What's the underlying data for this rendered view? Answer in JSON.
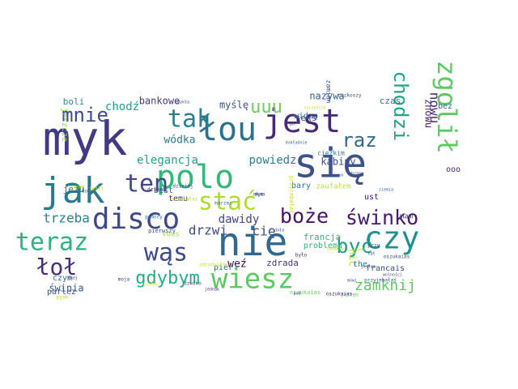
{
  "words": [
    {
      "text": "myk",
      "color": "#443983"
    },
    {
      "text": "się",
      "color": "#3b528b"
    },
    {
      "text": "nie",
      "color": "#31688e"
    },
    {
      "text": "jak",
      "color": "#2a788e"
    },
    {
      "text": "polo",
      "color": "#35b779"
    },
    {
      "text": "łou",
      "color": "#2c728e"
    },
    {
      "text": "jest",
      "color": "#482878"
    },
    {
      "text": "czy",
      "color": "#21918c"
    },
    {
      "text": "disco",
      "color": "#3e4989"
    },
    {
      "text": "wiesz",
      "color": "#5ec962"
    },
    {
      "text": "wąs",
      "color": "#3e4a89"
    },
    {
      "text": "teraz",
      "color": "#2db27d"
    },
    {
      "text": "łoł",
      "color": "#472d7b"
    },
    {
      "text": "tak",
      "color": "#27808e"
    },
    {
      "text": "ten",
      "color": "#3f4788"
    },
    {
      "text": "stać",
      "color": "#addc30"
    },
    {
      "text": "zgolił",
      "color": "#5ec962"
    },
    {
      "text": "boże",
      "color": "#471365"
    },
    {
      "text": "świnko",
      "color": "#481a6c"
    },
    {
      "text": "być",
      "color": "#1f9a8a"
    },
    {
      "text": "mnie",
      "color": "#3e4a89"
    },
    {
      "text": "raz",
      "color": "#31688e"
    },
    {
      "text": "chodzi",
      "color": "#20a486"
    },
    {
      "text": "uuu",
      "color": "#6ece58"
    },
    {
      "text": "gdybym",
      "color": "#27ad81"
    },
    {
      "text": "zamknij",
      "color": "#5ec962"
    },
    {
      "text": "nowu",
      "color": "#482878"
    },
    {
      "text": "trzeba",
      "color": "#277f8e"
    },
    {
      "text": "drzwi",
      "color": "#3e4a89"
    },
    {
      "text": "cię",
      "color": "#3b528b"
    },
    {
      "text": "dawidy",
      "color": "#404688"
    },
    {
      "text": "elegancja",
      "color": "#1fa187"
    },
    {
      "text": "powiedz",
      "color": "#287d8e"
    },
    {
      "text": "kabiny",
      "color": "#3d4e8a"
    },
    {
      "text": "chodź",
      "color": "#1f9e89"
    },
    {
      "text": "bankowe",
      "color": "#453781"
    },
    {
      "text": "wódka",
      "color": "#2a788e"
    },
    {
      "text": "myślę",
      "color": "#3b528b"
    },
    {
      "text": "seks",
      "color": "#443a83"
    },
    {
      "text": "nazywa",
      "color": "#35608d"
    },
    {
      "text": "czas",
      "color": "#2a788e"
    },
    {
      "text": "bez",
      "color": "#31688e"
    },
    {
      "text": "znowu",
      "color": "#481f70"
    },
    {
      "text": "ooo",
      "color": "#482475"
    },
    {
      "text": "boli",
      "color": "#21918c"
    },
    {
      "text": "jeszcze",
      "color": "#8fd744"
    },
    {
      "text": "jezu",
      "color": "#2f6c8e"
    },
    {
      "text": "best",
      "color": "#2e6e8e"
    },
    {
      "text": "temu",
      "color": "#472f7d"
    },
    {
      "text": "francja",
      "color": "#35b779"
    },
    {
      "text": "weź",
      "color": "#440154"
    },
    {
      "text": "czym",
      "color": "#2c728e"
    },
    {
      "text": "parlez",
      "color": "#3a538b"
    },
    {
      "text": "świnia",
      "color": "#39568c"
    },
    {
      "text": "vous",
      "color": "#a8db34"
    },
    {
      "text": "pier",
      "color": "#2d708e"
    },
    {
      "text": "problemu",
      "color": "#2eb37c"
    },
    {
      "text": "zdrada",
      "color": "#443983"
    },
    {
      "text": "nic",
      "color": "#bddf26"
    },
    {
      "text": "the",
      "color": "#26828e"
    },
    {
      "text": "francais",
      "color": "#3e4a89"
    },
    {
      "text": "mam",
      "color": "#433e85"
    },
    {
      "text": "ust",
      "color": "#482071"
    },
    {
      "text": "zaufałem",
      "color": "#b8de29"
    },
    {
      "text": "bary",
      "color": "#2c738e"
    },
    {
      "text": "widzę",
      "color": "#2a768e"
    },
    {
      "text": "zamian",
      "color": "#3b528b"
    },
    {
      "text": "ciężkim",
      "color": "#2a788e"
    },
    {
      "text": "oszukaias",
      "color": "#6ece58"
    },
    {
      "text": "przyjebałaś",
      "color": "#bddf26"
    },
    {
      "text": "pierwszy",
      "color": "#3b528b"
    },
    {
      "text": "dzwiko",
      "color": "#3e4a89"
    },
    {
      "text": "pysk",
      "color": "#bddf26"
    },
    {
      "text": "czymo",
      "color": "#fde725"
    },
    {
      "text": "jednak",
      "color": "#bddf26"
    },
    {
      "text": "jeśli",
      "color": "#c8e020"
    },
    {
      "text": "pomocy",
      "color": "#2a788e"
    },
    {
      "text": "moja",
      "color": "#3e4a89"
    },
    {
      "text": "domy",
      "color": "#31688e"
    },
    {
      "text": "dzieci",
      "color": "#472d7b"
    },
    {
      "text": "przy",
      "color": "#3b528b"
    },
    {
      "text": "jestem",
      "color": "#6ece58"
    },
    {
      "text": "inna",
      "color": "#31688e"
    },
    {
      "text": "było",
      "color": "#472d7b"
    },
    {
      "text": "oszukałaś",
      "color": "#bddf26"
    },
    {
      "text": "marzec",
      "color": "#2a788e"
    },
    {
      "text": "rozkoszy",
      "color": "#3e4a89"
    },
    {
      "text": "przyjebałaś",
      "color": "#3b528b"
    },
    {
      "text": "oszukaias",
      "color": "#482878"
    },
    {
      "text": "pod",
      "color": "#3e4a89"
    },
    {
      "text": "zdradziłaś",
      "color": "#c8e020"
    },
    {
      "text": "mówi",
      "color": "#3b528b"
    },
    {
      "text": "okej",
      "color": "#472d7b"
    },
    {
      "text": "obrazy",
      "color": "#3e4a89"
    },
    {
      "text": "ziemia",
      "color": "#31688e"
    },
    {
      "text": "wolności",
      "color": "#3e4a89"
    },
    {
      "text": "jednak",
      "color": "#472d7b"
    },
    {
      "text": "dała",
      "color": "#3b528b"
    },
    {
      "text": "sami",
      "color": "#bddf26"
    },
    {
      "text": "oszukaias",
      "color": "#3e4a89"
    },
    {
      "text": "dokładnie",
      "color": "#31688e"
    },
    {
      "text": "zamykam",
      "color": "#b8de29"
    },
    {
      "text": "jestem",
      "color": "#3e4a89"
    },
    {
      "text": "łał",
      "color": "#3e4a89"
    },
    {
      "text": "zwykła",
      "color": "#3e4a89"
    },
    {
      "text": "dzisiaj",
      "color": "#3e4a89"
    },
    {
      "text": "po",
      "color": "#3e4a89"
    },
    {
      "text": "szczęście",
      "color": "#bddf26"
    },
    {
      "text": "mym",
      "color": "#3e4a89"
    },
    {
      "text": "okna",
      "color": "#3e4a89"
    }
  ]
}
